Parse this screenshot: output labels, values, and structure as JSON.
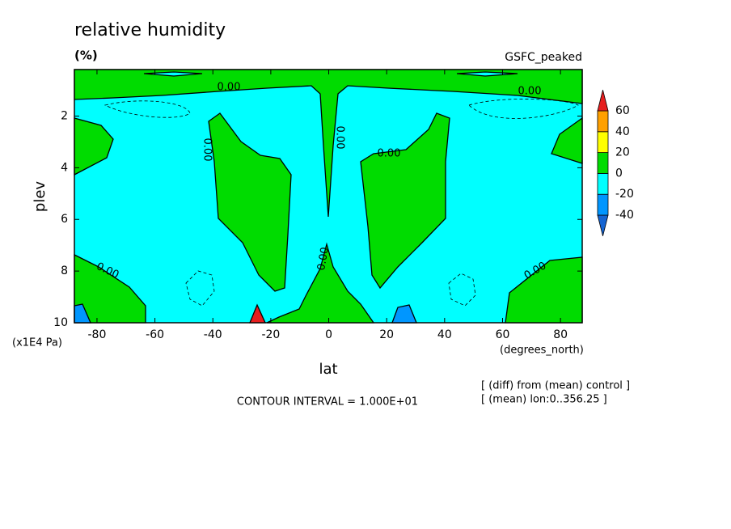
{
  "chart_data": {
    "type": "contour",
    "title": "relative humidity",
    "subtitle": "(%)",
    "run_label": "GSFC_peaked",
    "xlabel": "lat",
    "ylabel": "plev",
    "x_unit_label": "(degrees_north)",
    "y_unit_label": "(x1E4 Pa)",
    "xlim": [
      -87.8,
      87.5
    ],
    "ylim": [
      10,
      0.2
    ],
    "xticks": [
      -80,
      -60,
      -40,
      -20,
      0,
      20,
      40,
      60,
      80
    ],
    "yticks": [
      2,
      4,
      6,
      8,
      10
    ],
    "contour_interval": "CONTOUR INTERVAL = 1.000E+01",
    "notes": [
      "[ (diff) from (mean) control ]",
      "[ (mean) lon:0..356.25 ]"
    ],
    "contour_labels": [
      "0.00",
      "0.00",
      "0.00",
      "0.00",
      "0.00",
      "0.00",
      "0.00",
      "0.00"
    ],
    "colorbar": {
      "levels": [
        -40,
        -20,
        0,
        20,
        40,
        60
      ],
      "colors": [
        "#1464d2",
        "#0096ff",
        "#00ffff",
        "#00dc00",
        "#ffff00",
        "#ffa000",
        "#e61e1e"
      ]
    }
  }
}
